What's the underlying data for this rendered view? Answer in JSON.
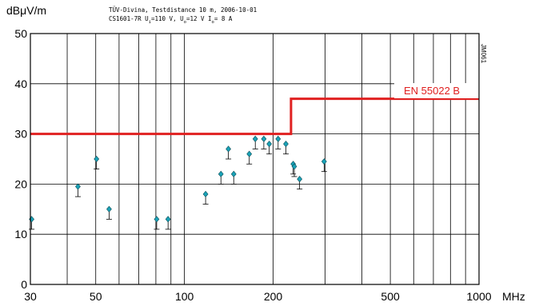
{
  "chart_data": {
    "type": "scatter",
    "ylabel": "dBμV/m",
    "xunit": "MHz",
    "title_line1": "TÜV-Divina, Testdistance 10 m, 2006-10-01",
    "title_line2_parts": [
      "CS1601-7R U",
      "i",
      "=110 V, U",
      "o",
      "=12 V I",
      "o",
      "= 8 A"
    ],
    "side_label": "JM061",
    "x_scale": "log",
    "xlim": [
      30,
      1000
    ],
    "ylim": [
      0,
      50
    ],
    "x_ticks": [
      30,
      50,
      100,
      200,
      500,
      1000
    ],
    "x_tick_labels": [
      "30",
      "50",
      "100",
      "200",
      "500",
      "1000"
    ],
    "x_gridlines": [
      30,
      40,
      50,
      60,
      70,
      80,
      90,
      100,
      200,
      300,
      400,
      500,
      600,
      700,
      800,
      900,
      1000
    ],
    "y_ticks": [
      0,
      10,
      20,
      30,
      40,
      50
    ],
    "y_tick_labels": [
      "0",
      "10",
      "20",
      "30",
      "40",
      "50"
    ],
    "grid": true,
    "limit_line": {
      "name": "EN 55022 B",
      "color": "#e02020",
      "points": [
        [
          30,
          30
        ],
        [
          230,
          30
        ],
        [
          230,
          37
        ],
        [
          1000,
          37
        ]
      ]
    },
    "marker_color": "#1aa3b8",
    "points": [
      {
        "x": 30.3,
        "y": 13,
        "low": 11
      },
      {
        "x": 43.5,
        "y": 19.5,
        "low": 17.5
      },
      {
        "x": 50.3,
        "y": 25,
        "low": 23
      },
      {
        "x": 55.5,
        "y": 15,
        "low": 13
      },
      {
        "x": 80.5,
        "y": 13,
        "low": 11
      },
      {
        "x": 88,
        "y": 13,
        "low": 11
      },
      {
        "x": 118,
        "y": 18,
        "low": 16
      },
      {
        "x": 133,
        "y": 22,
        "low": 20
      },
      {
        "x": 141,
        "y": 27,
        "low": 25
      },
      {
        "x": 147,
        "y": 22,
        "low": 20
      },
      {
        "x": 166,
        "y": 26,
        "low": 24
      },
      {
        "x": 174,
        "y": 29,
        "low": 27
      },
      {
        "x": 186,
        "y": 29,
        "low": 27
      },
      {
        "x": 194,
        "y": 28,
        "low": 26
      },
      {
        "x": 208,
        "y": 29,
        "low": 27
      },
      {
        "x": 221,
        "y": 28,
        "low": 26
      },
      {
        "x": 234,
        "y": 24,
        "low": 22
      },
      {
        "x": 236,
        "y": 23.5,
        "low": 21.5
      },
      {
        "x": 246,
        "y": 21,
        "low": 19
      },
      {
        "x": 298,
        "y": 24.5,
        "low": 22.5
      }
    ]
  }
}
